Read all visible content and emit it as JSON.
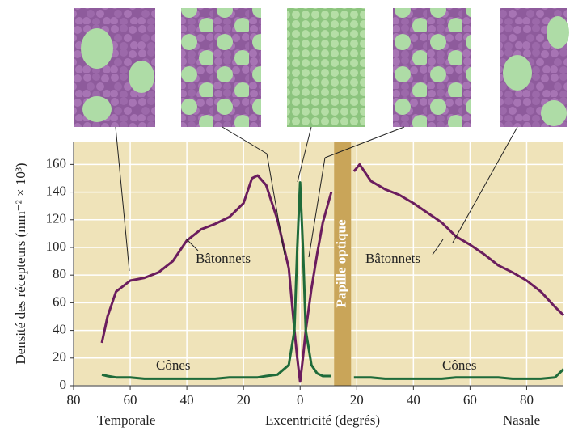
{
  "chart_data": {
    "type": "line",
    "x_label": "Excentricité (degrés)",
    "y_label": "Densité des récepteurs (mm⁻² × 10³)",
    "x_left_label": "Temporale",
    "x_right_label": "Nasale",
    "optic_disc_label": "Papille optique",
    "optic_disc": [
      12,
      18
    ],
    "annotations": [
      "Bâtonnets",
      "Bâtonnets",
      "Cônes",
      "Cônes"
    ],
    "x": [
      -70,
      -68,
      -65,
      -60,
      -55,
      -50,
      -45,
      -40,
      -35,
      -30,
      -25,
      -20,
      -17,
      -15,
      -12,
      -8,
      -4,
      -2,
      -1,
      0,
      1,
      2,
      4,
      6,
      8,
      11,
      15,
      19,
      21,
      25,
      30,
      35,
      40,
      45,
      50,
      55,
      60,
      65,
      70,
      75,
      80,
      85,
      90,
      93
    ],
    "series": [
      {
        "name": "Bâtonnets",
        "color": "#6b1d5e",
        "values": [
          31,
          50,
          68,
          76,
          78,
          82,
          90,
          105,
          113,
          117,
          122,
          132,
          150,
          152,
          145,
          120,
          85,
          40,
          20,
          3,
          20,
          40,
          70,
          95,
          118,
          140,
          null,
          155,
          160,
          148,
          142,
          138,
          132,
          125,
          118,
          108,
          102,
          95,
          87,
          82,
          76,
          68,
          57,
          51
        ]
      },
      {
        "name": "Cônes",
        "color": "#1f6b3a",
        "values": [
          8,
          7,
          6,
          6,
          5,
          5,
          5,
          5,
          5,
          5,
          6,
          6,
          6,
          6,
          7,
          8,
          15,
          40,
          100,
          147,
          100,
          40,
          15,
          9,
          7,
          7,
          null,
          6,
          6,
          6,
          5,
          5,
          5,
          5,
          5,
          6,
          6,
          6,
          6,
          5,
          5,
          5,
          6,
          12
        ]
      }
    ],
    "xlim": [
      -80,
      93
    ],
    "ylim": [
      0,
      176
    ],
    "xticks": [
      {
        "value": -80,
        "label": "80"
      },
      {
        "value": -60,
        "label": "60"
      },
      {
        "value": -40,
        "label": "40"
      },
      {
        "value": -20,
        "label": "20"
      },
      0,
      20,
      40,
      60,
      80
    ],
    "yticks": [
      0,
      20,
      40,
      60,
      80,
      100,
      120,
      140,
      160
    ],
    "grid": true
  }
}
